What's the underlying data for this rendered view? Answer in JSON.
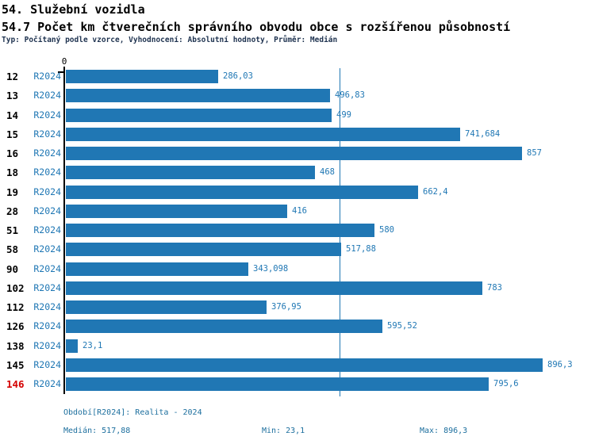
{
  "colors": {
    "bar": "#2077b4",
    "blue_text": "#1f77b4",
    "footer_text": "#1d6f9e",
    "median_line": "#1f77b4",
    "highlight": "#d40000",
    "subtitle_text": "#1f3350",
    "axis": "#000000"
  },
  "chart_data": {
    "type": "bar",
    "orientation": "horizontal",
    "title": "54. Služební vozidla",
    "subtitle": "54.7 Počet km čtverečních správního obvodu obce s rozšířenou působností",
    "meta": "Typ: Počítaný podle vzorce, Vyhodnocení: Absolutní hodnoty, Průměr: Medián",
    "categories": [
      "12",
      "13",
      "14",
      "15",
      "16",
      "18",
      "19",
      "28",
      "51",
      "58",
      "90",
      "102",
      "112",
      "126",
      "138",
      "145",
      "146"
    ],
    "series": [
      {
        "name": "R2024",
        "values": [
          286.03,
          496.83,
          499,
          741.684,
          857,
          468,
          662.4,
          416,
          580,
          517.88,
          343.098,
          783,
          376.95,
          595.52,
          23.1,
          896.3,
          795.6
        ]
      }
    ],
    "value_labels": [
      "286,03",
      "496,83",
      "499",
      "741,684",
      "857",
      "468",
      "662,4",
      "416",
      "580",
      "517,88",
      "343,098",
      "783",
      "376,95",
      "595,52",
      "23,1",
      "896,3",
      "795,6"
    ],
    "x_tick_labels": [
      "0"
    ],
    "xlim": [
      0,
      962
    ],
    "grid": false,
    "legend_position": "none",
    "median_line_value": 517.88,
    "highlighted_category": "146",
    "stats": {
      "median": 517.88,
      "min": 23.1,
      "max": 896.3
    },
    "annotations": {
      "period": "Období[R2024]: Realita - 2024",
      "median": "Medián: 517,88",
      "min": "Min: 23,1",
      "max": "Max: 896,3"
    }
  }
}
